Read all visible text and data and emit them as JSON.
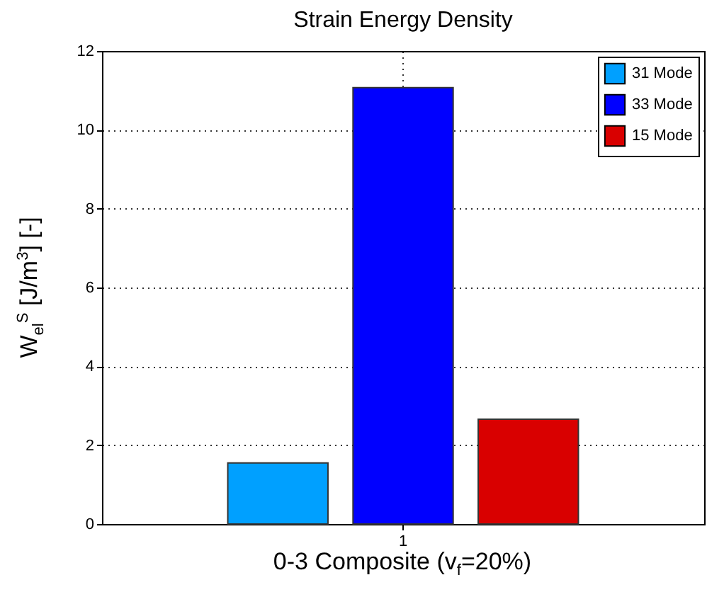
{
  "chart_data": {
    "type": "bar",
    "title": "Strain Energy Density",
    "xlabel": "0-3 Composite (v$_{f}$=20%)",
    "ylabel": "W$_{el}$$^{S}$ [J/m$^{3}$] [-]",
    "categories": [
      "1"
    ],
    "series": [
      {
        "name": "31 Mode",
        "color": "#00a0ff",
        "values": [
          1.55
        ]
      },
      {
        "name": "33 Mode",
        "color": "#0000ff",
        "values": [
          11.07
        ]
      },
      {
        "name": "15 Mode",
        "color": "#d90000",
        "values": [
          2.66
        ]
      }
    ],
    "ylim": [
      0,
      12
    ],
    "yticks": [
      0,
      2,
      4,
      6,
      8,
      10,
      12
    ],
    "grid": true,
    "legend": "top right"
  }
}
